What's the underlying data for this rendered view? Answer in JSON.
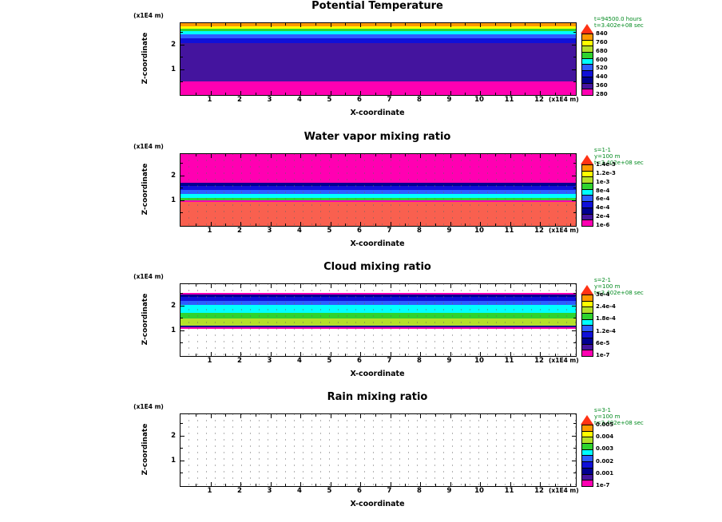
{
  "chart_data": [
    {
      "type": "heatmap",
      "title": "Potential Temperature",
      "xlabel": "X-coordinate",
      "ylabel": "Z-coordinate",
      "x_unit": "(x1E4 m)",
      "y_unit": "(x1E4 m)",
      "x_range": [
        0,
        13.2
      ],
      "z_range": [
        0,
        2.9
      ],
      "x_ticks": [
        1,
        2,
        3,
        4,
        5,
        6,
        7,
        8,
        9,
        10,
        11,
        12
      ],
      "z_ticks": [
        1,
        2
      ],
      "annotations": [
        "t=94500.0 hours",
        "t=3.402e+08 sec"
      ],
      "dots": false,
      "bands": [
        {
          "color": "#ff00b2",
          "z_from": 0,
          "z_to": 0.54
        },
        {
          "color": "#44149e",
          "z_from": 0.54,
          "z_to": 2.09
        },
        {
          "color": "#1010d8",
          "z_from": 2.09,
          "z_to": 2.28
        },
        {
          "color": "#2e5cff",
          "z_from": 2.28,
          "z_to": 2.45
        },
        {
          "color": "#00ffff",
          "z_from": 2.45,
          "z_to": 2.57
        },
        {
          "color": "#2fd32f",
          "z_from": 2.57,
          "z_to": 2.67
        },
        {
          "color": "#ffff00",
          "z_from": 2.67,
          "z_to": 2.78
        },
        {
          "color": "#ff9a00",
          "z_from": 2.78,
          "z_to": 2.9
        }
      ],
      "colorbar": {
        "labels": [
          "840",
          "760",
          "680",
          "600",
          "520",
          "440",
          "360",
          "280"
        ],
        "colors": [
          "#ff00b2",
          "#44149e",
          "#000090",
          "#1010d8",
          "#2e5cff",
          "#00ffff",
          "#2fd32f",
          "#b4e02a",
          "#ffff00",
          "#ff9a00"
        ],
        "arrow_color": "#ff3214"
      }
    },
    {
      "type": "heatmap",
      "title": "Water vapor mixing ratio",
      "xlabel": "X-coordinate",
      "ylabel": "Z-coordinate",
      "x_unit": "(x1E4 m)",
      "y_unit": "(x1E4 m)",
      "x_range": [
        0,
        13.2
      ],
      "z_range": [
        0,
        2.9
      ],
      "x_ticks": [
        1,
        2,
        3,
        4,
        5,
        6,
        7,
        8,
        9,
        10,
        11,
        12
      ],
      "z_ticks": [
        1,
        2
      ],
      "annotations": [
        "s=1-1",
        "y=100 m",
        "t=3.402e+08 sec"
      ],
      "dots": true,
      "bands": [
        {
          "color": "#f9604f",
          "z_from": 0,
          "z_to": 0.97
        },
        {
          "color": "#ff00b2",
          "z_from": 0.97,
          "z_to": 1.04
        },
        {
          "color": "#2fd32f",
          "z_from": 1.04,
          "z_to": 1.13
        },
        {
          "color": "#00ffff",
          "z_from": 1.13,
          "z_to": 1.28
        },
        {
          "color": "#2e5cff",
          "z_from": 1.28,
          "z_to": 1.45
        },
        {
          "color": "#1010d8",
          "z_from": 1.45,
          "z_to": 1.62
        },
        {
          "color": "#000090",
          "z_from": 1.62,
          "z_to": 1.75
        },
        {
          "color": "#ff00b2",
          "z_from": 1.75,
          "z_to": 2.9
        }
      ],
      "colorbar": {
        "labels": [
          "1.4e-3",
          "1.2e-3",
          "1e-3",
          "8e-4",
          "6e-4",
          "4e-4",
          "2e-4",
          "1e-6"
        ],
        "colors": [
          "#ff00b2",
          "#44149e",
          "#000090",
          "#1010d8",
          "#2e5cff",
          "#00ffff",
          "#2fd32f",
          "#b4e02a",
          "#ffff00",
          "#ff9a00"
        ],
        "arrow_color": "#ff3214"
      }
    },
    {
      "type": "heatmap",
      "title": "Cloud mixing ratio",
      "xlabel": "X-coordinate",
      "ylabel": "Z-coordinate",
      "x_unit": "(x1E4 m)",
      "y_unit": "(x1E4 m)",
      "x_range": [
        0,
        13.2
      ],
      "z_range": [
        0,
        2.9
      ],
      "x_ticks": [
        1,
        2,
        3,
        4,
        5,
        6,
        7,
        8,
        9,
        10,
        11,
        12
      ],
      "z_ticks": [
        1,
        2
      ],
      "annotations": [
        "s=2-1",
        "y=100 m",
        "t=3.402e+08 sec"
      ],
      "dots": true,
      "bands": [
        {
          "color": "#ffffff",
          "z_from": 0,
          "z_to": 1.09
        },
        {
          "color": "#ff00b2",
          "z_from": 1.09,
          "z_to": 1.17
        },
        {
          "color": "#000090",
          "z_from": 1.17,
          "z_to": 1.24
        },
        {
          "color": "#b4e02a",
          "z_from": 1.24,
          "z_to": 1.52
        },
        {
          "color": "#2fd32f",
          "z_from": 1.52,
          "z_to": 1.75
        },
        {
          "color": "#00ffff",
          "z_from": 1.75,
          "z_to": 2.06
        },
        {
          "color": "#2e5cff",
          "z_from": 2.06,
          "z_to": 2.23
        },
        {
          "color": "#1010d8",
          "z_from": 2.23,
          "z_to": 2.38
        },
        {
          "color": "#000090",
          "z_from": 2.38,
          "z_to": 2.49
        },
        {
          "color": "#ff00b2",
          "z_from": 2.49,
          "z_to": 2.56
        },
        {
          "color": "#ffffff",
          "z_from": 2.56,
          "z_to": 2.9
        }
      ],
      "colorbar": {
        "labels": [
          "3e-4",
          "2.4e-4",
          "1.8e-4",
          "1.2e-4",
          "6e-5",
          "1e-7"
        ],
        "colors": [
          "#ff00b2",
          "#44149e",
          "#000090",
          "#1010d8",
          "#2e5cff",
          "#00ffff",
          "#2fd32f",
          "#b4e02a",
          "#ffff00",
          "#ff9a00"
        ],
        "arrow_color": "#ff3214"
      }
    },
    {
      "type": "heatmap",
      "title": "Rain mixing ratio",
      "xlabel": "X-coordinate",
      "ylabel": "Z-coordinate",
      "x_unit": "(x1E4 m)",
      "y_unit": "(x1E4 m)",
      "x_range": [
        0,
        13.2
      ],
      "z_range": [
        0,
        2.9
      ],
      "x_ticks": [
        1,
        2,
        3,
        4,
        5,
        6,
        7,
        8,
        9,
        10,
        11,
        12
      ],
      "z_ticks": [
        1,
        2
      ],
      "annotations": [
        "s=3-1",
        "y=100 m",
        "t=3.402e+08 sec"
      ],
      "dots": true,
      "bands": [
        {
          "color": "#ffffff",
          "z_from": 0,
          "z_to": 2.9
        }
      ],
      "colorbar": {
        "labels": [
          "0.005",
          "0.004",
          "0.003",
          "0.002",
          "0.001",
          "1e-7"
        ],
        "colors": [
          "#ff00b2",
          "#44149e",
          "#000090",
          "#1010d8",
          "#2e5cff",
          "#00ffff",
          "#2fd32f",
          "#b4e02a",
          "#ffff00",
          "#ff9a00"
        ],
        "arrow_color": "#ff3214"
      }
    }
  ]
}
